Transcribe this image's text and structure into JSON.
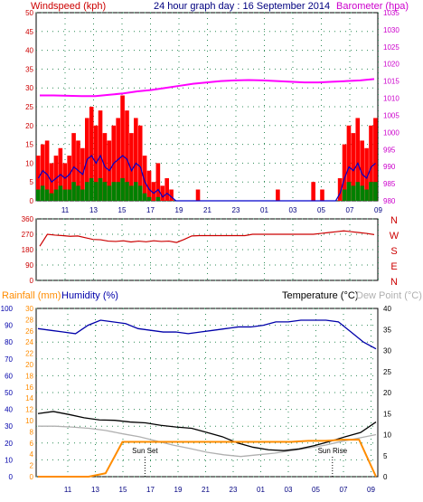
{
  "chart_data": [
    {
      "type": "line",
      "name": "wind-baro",
      "title": "24 hour graph day : 16 September 2014",
      "left_label": "Windspeed (kph)",
      "right_label": "Barometer (hpa)",
      "ylim_left": [
        0,
        50
      ],
      "ylim_right": [
        980,
        1035
      ],
      "y_ticks_left": [
        0,
        5,
        10,
        15,
        20,
        25,
        30,
        35,
        40,
        45,
        50
      ],
      "y_ticks_right": [
        980,
        985,
        990,
        995,
        1000,
        1005,
        1010,
        1015,
        1020,
        1025,
        1030,
        1035
      ],
      "x_ticks": [
        "11",
        "13",
        "15",
        "17",
        "19",
        "21",
        "23",
        "01",
        "03",
        "05",
        "07",
        "09"
      ],
      "grid": true,
      "series": [
        {
          "key": "gust",
          "color": "#ff0000",
          "values": [
            12,
            15,
            16,
            10,
            12,
            14,
            10,
            12,
            18,
            16,
            14,
            22,
            25,
            20,
            24,
            18,
            16,
            20,
            22,
            28,
            24,
            18,
            22,
            20,
            12,
            8,
            5,
            10,
            4,
            6,
            3,
            0,
            0,
            0,
            0,
            0,
            3,
            0,
            0,
            0,
            0,
            0,
            0,
            0,
            0,
            0,
            0,
            0,
            0,
            0,
            0,
            0,
            0,
            0,
            3,
            0,
            0,
            0,
            0,
            0,
            0,
            0,
            5,
            0,
            3,
            0,
            0,
            0,
            6,
            15,
            20,
            18,
            22,
            16,
            14,
            20,
            22
          ]
        },
        {
          "key": "avg",
          "color": "#0000cc",
          "values": [
            6,
            8,
            7,
            5,
            6,
            7,
            6,
            7,
            9,
            8,
            7,
            11,
            12,
            10,
            12,
            9,
            8,
            10,
            11,
            12,
            11,
            8,
            10,
            9,
            5,
            3,
            2,
            3,
            1,
            2,
            1,
            0,
            0,
            0,
            0,
            0,
            0,
            0,
            0,
            0,
            0,
            0,
            0,
            0,
            0,
            0,
            0,
            0,
            0,
            0,
            0,
            0,
            0,
            0,
            0,
            0,
            0,
            0,
            0,
            0,
            0,
            0,
            0,
            0,
            0,
            0,
            0,
            0,
            2,
            6,
            9,
            8,
            10,
            7,
            6,
            9,
            10
          ]
        },
        {
          "key": "min",
          "color": "#008000",
          "values": [
            3,
            4,
            3,
            2,
            3,
            4,
            3,
            3,
            5,
            4,
            3,
            5,
            6,
            5,
            6,
            5,
            4,
            5,
            5,
            6,
            5,
            4,
            5,
            4,
            2,
            1,
            0,
            1,
            0,
            0,
            0,
            0,
            0,
            0,
            0,
            0,
            0,
            0,
            0,
            0,
            0,
            0,
            0,
            0,
            0,
            0,
            0,
            0,
            0,
            0,
            0,
            0,
            0,
            0,
            0,
            0,
            0,
            0,
            0,
            0,
            0,
            0,
            0,
            0,
            0,
            0,
            0,
            0,
            0,
            3,
            5,
            4,
            5,
            4,
            3,
            5,
            5
          ]
        },
        {
          "name": "Barometer",
          "key": "baro",
          "axis": "right",
          "color": "#ff00ff",
          "values": [
            1010.8,
            1010.8,
            1010.7,
            1010.6,
            1010.6,
            1011.0,
            1011.4,
            1012.0,
            1012.4,
            1013.0,
            1013.6,
            1014.2,
            1014.6,
            1015.0,
            1015.2,
            1015.3,
            1015.2,
            1015.0,
            1014.8,
            1014.6,
            1014.6,
            1014.8,
            1015.0,
            1015.2,
            1015.6
          ]
        }
      ],
      "colors": {
        "left_axis": "#cc0000",
        "right_axis": "#cc00cc",
        "title": "#000080"
      }
    },
    {
      "type": "scatter",
      "name": "wind-direction",
      "ylim": [
        0,
        360
      ],
      "y_ticks": [
        0,
        90,
        180,
        270,
        360
      ],
      "compass_labels": [
        "N",
        "W",
        "S",
        "E",
        "N"
      ],
      "values": [
        200,
        270,
        265,
        262,
        258,
        260,
        250,
        240,
        238,
        230,
        228,
        232,
        225,
        230,
        226,
        232,
        228,
        230,
        222,
        240,
        260,
        262,
        262,
        262,
        262,
        262,
        262,
        262,
        270,
        270,
        270,
        270,
        270,
        270,
        270,
        270,
        270,
        275,
        280,
        285,
        290,
        285,
        280,
        275,
        268
      ],
      "color": "#cc0000"
    },
    {
      "type": "line",
      "name": "rain-humidity-temp",
      "rain_label": "Rainfall (mm)",
      "humidity_label": "Humidity (%)",
      "temp_label": "Temperature (°C)",
      "dew_label": "Dew Point (°C)",
      "ylim_humidity": [
        0,
        100
      ],
      "ylim_rain": [
        0,
        30
      ],
      "ylim_temp": [
        0,
        40
      ],
      "y_ticks_humidity": [
        0,
        10,
        20,
        30,
        40,
        50,
        60,
        70,
        80,
        90,
        100
      ],
      "y_ticks_rain": [
        0,
        2,
        4,
        6,
        8,
        10,
        12,
        14,
        16,
        18,
        20,
        22,
        24,
        26,
        28,
        30
      ],
      "y_ticks_temp": [
        0,
        5,
        10,
        15,
        20,
        25,
        30,
        35,
        40
      ],
      "x_ticks": [
        "11",
        "13",
        "15",
        "17",
        "19",
        "21",
        "23",
        "01",
        "03",
        "05",
        "07",
        "09"
      ],
      "events": [
        {
          "label": "Sun Set",
          "at": 16.6
        },
        {
          "label": "Sun Rise",
          "at": 30.2
        }
      ],
      "series": [
        {
          "key": "humidity",
          "color": "#0000aa",
          "values": [
            88,
            87,
            86,
            85,
            90,
            93,
            92,
            91,
            88,
            87,
            86,
            86,
            85,
            86,
            87,
            88,
            89,
            89,
            90,
            92,
            92,
            93,
            93,
            93,
            92,
            86,
            80,
            76
          ]
        },
        {
          "key": "temperature",
          "color": "#000000",
          "values": [
            15,
            15.5,
            14.8,
            14,
            13.5,
            13.4,
            13,
            12.8,
            12.2,
            11.8,
            11.5,
            10.5,
            9.5,
            8,
            7,
            6.4,
            6.2,
            6.6,
            7.4,
            8.4,
            9.5,
            10.5,
            13
          ]
        },
        {
          "key": "dewpoint",
          "color": "#b0b0b0",
          "values": [
            12,
            12,
            11.8,
            11.5,
            11,
            10.2,
            9.5,
            8.5,
            7.5,
            6.7,
            5.8,
            5.2,
            4.8,
            5.2,
            5.6,
            6.2,
            6.8,
            7.5,
            8.4,
            9.2,
            10
          ]
        },
        {
          "key": "rainfall",
          "color": "#ff8c00",
          "values": [
            0,
            0,
            0,
            0,
            0.6,
            6.2,
            6.2,
            6.2,
            6.2,
            6.2,
            6.2,
            6.2,
            6.2,
            6.2,
            6.2,
            6.2,
            6.4,
            6.4,
            6.6,
            6.6,
            0
          ]
        }
      ],
      "colors": {
        "rain": "#ff8c00",
        "humidity": "#0000aa",
        "temp": "#000000",
        "dew": "#b0b0b0"
      }
    }
  ]
}
